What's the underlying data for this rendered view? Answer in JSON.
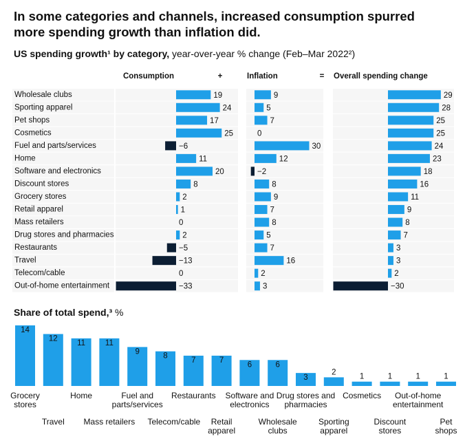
{
  "title": "In some categories and channels, increased consumption spurred more spending growth than inflation did.",
  "chart_data": [
    {
      "type": "bar",
      "orientation": "horizontal",
      "title": "US spending growth¹ by category,",
      "subtitle": "year-over-year % change (Feb–Mar 2022²)",
      "operators": [
        "+",
        "="
      ],
      "categories": [
        "Wholesale clubs",
        "Sporting apparel",
        "Pet shops",
        "Cosmetics",
        "Fuel and parts/services",
        "Home",
        "Software and electronics",
        "Discount stores",
        "Grocery stores",
        "Retail apparel",
        "Mass retailers",
        "Drug stores and pharmacies",
        "Restaurants",
        "Travel",
        "Telecom/cable",
        "Out-of-home entertainment"
      ],
      "series": [
        {
          "name": "Consumption",
          "color": "#1f9fe8",
          "negative_color": "#0c1e33",
          "values": [
            19,
            24,
            17,
            25,
            -6,
            11,
            20,
            8,
            2,
            1,
            0,
            2,
            -5,
            -13,
            0,
            -33
          ],
          "value_labels": [
            "19",
            "24",
            "17",
            "25",
            "−6",
            "11",
            "20",
            "8",
            "2",
            "1",
            "0",
            "2",
            "−5",
            "−13",
            "0",
            "−33"
          ]
        },
        {
          "name": "Inflation",
          "color": "#1f9fe8",
          "negative_color": "#0c1e33",
          "values": [
            9,
            5,
            7,
            0,
            30,
            12,
            -2,
            8,
            9,
            7,
            8,
            5,
            7,
            16,
            2,
            3
          ],
          "value_labels": [
            "9",
            "5",
            "7",
            "0",
            "30",
            "12",
            "−2",
            "8",
            "9",
            "7",
            "8",
            "5",
            "7",
            "16",
            "2",
            "3"
          ]
        },
        {
          "name": "Overall spending change",
          "color": "#1f9fe8",
          "negative_color": "#0c1e33",
          "values": [
            29,
            28,
            25,
            25,
            24,
            23,
            18,
            16,
            11,
            9,
            8,
            7,
            3,
            3,
            2,
            -30
          ],
          "value_labels": [
            "29",
            "28",
            "25",
            "25",
            "24",
            "23",
            "18",
            "16",
            "11",
            "9",
            "8",
            "7",
            "3",
            "3",
            "2",
            "−30"
          ]
        }
      ]
    },
    {
      "type": "bar",
      "orientation": "vertical",
      "title": "Share of total spend,³",
      "unit": "%",
      "color": "#1f9fe8",
      "categories": [
        "Grocery stores",
        "Travel",
        "Home",
        "Mass retailers",
        "Fuel and parts/services",
        "Telecom/cable",
        "Restaurants",
        "Retail apparel",
        "Software and electronics",
        "Wholesale clubs",
        "Drug stores and pharmacies",
        "Sporting apparel",
        "Cosmetics",
        "Discount stores",
        "Out-of-home entertainment",
        "Pet shops"
      ],
      "values": [
        14,
        12,
        11,
        11,
        9,
        8,
        7,
        7,
        6,
        6,
        3,
        2,
        1,
        1,
        1,
        1
      ]
    }
  ]
}
